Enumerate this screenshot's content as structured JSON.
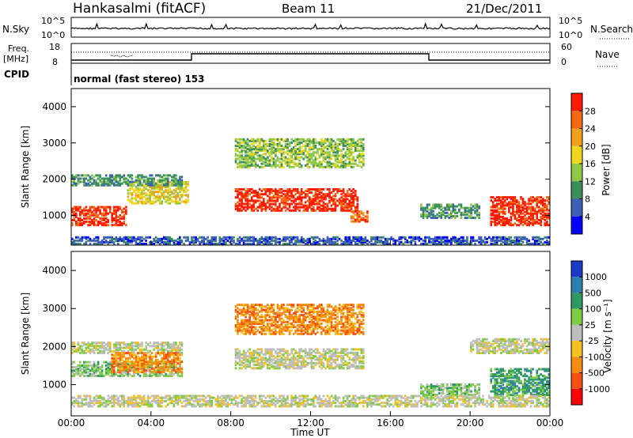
{
  "header": {
    "station": "Hankasalmi (fitACF)",
    "beam": "Beam 11",
    "date": "21/Dec/2011"
  },
  "noise_panel": {
    "label_left": "N.Sky",
    "label_right": "N.Search",
    "tick_top": "10^5",
    "tick_bottom": "10^0"
  },
  "freq_panel": {
    "label_left_1": "Freq.",
    "label_left_2": "[MHz]",
    "tick_top": "18",
    "tick_bottom": "8",
    "label_right": "Nave",
    "tick_right_top": "60",
    "tick_right_bottom": "0",
    "cpid_label": "CPID",
    "cpid_text": "normal (fast stereo) 153"
  },
  "x_axis": {
    "label": "Time UT",
    "ticks": [
      "00:00",
      "04:00",
      "08:00",
      "12:00",
      "16:00",
      "20:00",
      "00:00"
    ]
  },
  "power_panel": {
    "ylabel": "Slant Range [km]",
    "yticks": [
      "1000",
      "2000",
      "3000",
      "4000"
    ],
    "cbar_label": "Power [dB]",
    "cbar_ticks": [
      "4",
      "8",
      "12",
      "16",
      "20",
      "24",
      "28"
    ],
    "cbar_colors": [
      "#0000ff",
      "#3a5fb5",
      "#3a8f5a",
      "#8fc846",
      "#f2d51f",
      "#f2a01c",
      "#f56a10",
      "#ff1a00"
    ]
  },
  "velocity_panel": {
    "ylabel": "Slant Range [km]",
    "yticks": [
      "1000",
      "2000",
      "3000",
      "4000"
    ],
    "cbar_label": "Velocity [m s⁻¹]",
    "cbar_ticks": [
      "1000",
      "500",
      "100",
      "25",
      "-25",
      "-100",
      "-500",
      "-1000"
    ],
    "cbar_colors": [
      "#1a3cc8",
      "#2a7fb0",
      "#2e9960",
      "#7fcc44",
      "#bdbdbd",
      "#f5c020",
      "#f58a10",
      "#f55010",
      "#ff0000"
    ]
  },
  "chart_data": [
    {
      "type": "heatmap",
      "title": "Power",
      "x_range_hours": [
        0,
        24
      ],
      "ylim": [
        180,
        4500
      ],
      "blocks": [
        {
          "t0": 0.0,
          "t1": 2.8,
          "r0": 700,
          "r1": 1200,
          "level": 7
        },
        {
          "t0": 2.8,
          "t1": 5.8,
          "r0": 1300,
          "r1": 1900,
          "level": 4
        },
        {
          "t0": 0.0,
          "t1": 5.5,
          "r0": 1800,
          "r1": 2100,
          "level": 2
        },
        {
          "t0": 8.2,
          "t1": 14.3,
          "r0": 1100,
          "r1": 1700,
          "level": 7
        },
        {
          "t0": 14.0,
          "t1": 14.8,
          "r0": 800,
          "r1": 1100,
          "level": 6
        },
        {
          "t0": 8.2,
          "t1": 14.6,
          "r0": 2300,
          "r1": 3100,
          "level": 3
        },
        {
          "t0": 17.5,
          "t1": 20.5,
          "r0": 900,
          "r1": 1300,
          "level": 2
        },
        {
          "t0": 21.0,
          "t1": 24.0,
          "r0": 700,
          "r1": 1500,
          "level": 7
        },
        {
          "t0": 0.0,
          "t1": 24.0,
          "r0": 180,
          "r1": 400,
          "level": 1
        }
      ]
    },
    {
      "type": "heatmap",
      "title": "Velocity",
      "x_range_hours": [
        0,
        24
      ],
      "ylim": [
        180,
        4500
      ],
      "blocks": [
        {
          "t0": 0.0,
          "t1": 5.5,
          "r0": 1800,
          "r1": 2100,
          "level": 4
        },
        {
          "t0": 0.0,
          "t1": 5.5,
          "r0": 1200,
          "r1": 1600,
          "level": 3
        },
        {
          "t0": 2.0,
          "t1": 5.5,
          "r0": 1300,
          "r1": 1800,
          "level": 6
        },
        {
          "t0": 8.2,
          "t1": 14.6,
          "r0": 1400,
          "r1": 1900,
          "level": 4
        },
        {
          "t0": 8.2,
          "t1": 14.6,
          "r0": 2300,
          "r1": 3100,
          "level": 6
        },
        {
          "t0": 17.5,
          "t1": 20.5,
          "r0": 700,
          "r1": 1000,
          "level": 3
        },
        {
          "t0": 20.0,
          "t1": 24.0,
          "r0": 1800,
          "r1": 2200,
          "level": 4
        },
        {
          "t0": 21.0,
          "t1": 24.0,
          "r0": 700,
          "r1": 1400,
          "level": 2
        },
        {
          "t0": 0.0,
          "t1": 24.0,
          "r0": 400,
          "r1": 700,
          "level": 4
        }
      ]
    }
  ]
}
